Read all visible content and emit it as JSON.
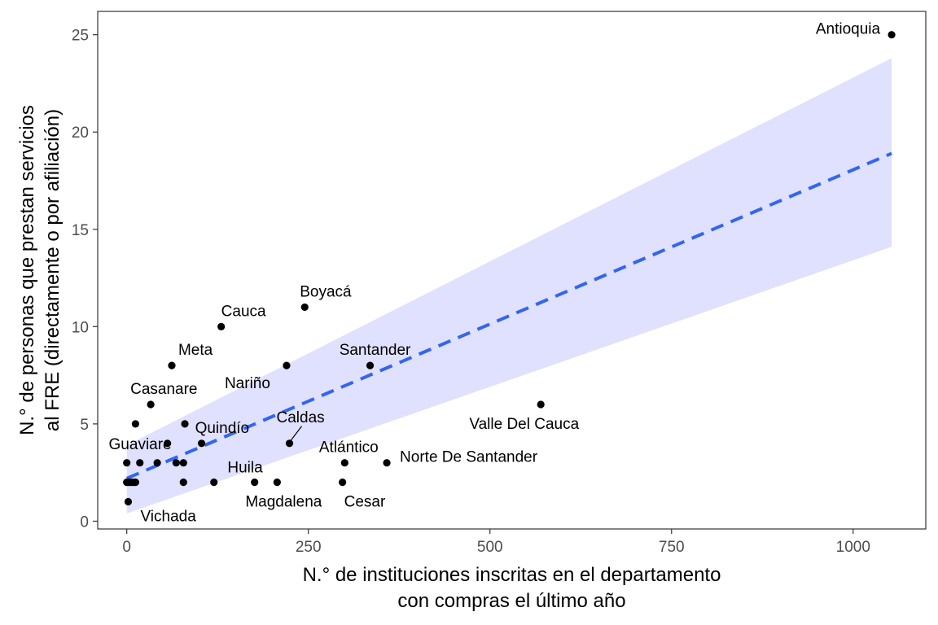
{
  "chart_data": {
    "type": "scatter",
    "xlabel_lines": [
      "N.° de instituciones inscritas en el departamento",
      "con compras el último año"
    ],
    "ylabel_lines": [
      "N.° de personas que prestan servicios",
      "al FRE (directamente o por afiliación)"
    ],
    "xlim": [
      -40,
      1100
    ],
    "ylim": [
      -0.4,
      26.2
    ],
    "x_ticks": [
      0,
      250,
      500,
      750,
      1000
    ],
    "y_ticks": [
      0,
      5,
      10,
      15,
      20,
      25
    ],
    "grid": false,
    "legend": "none",
    "point_color": "#000000",
    "trend_color": "#3366ee",
    "band_color": "#e0e0ff",
    "trend_line": {
      "style": "dashed",
      "x": [
        0,
        1053
      ],
      "y": [
        2.2,
        18.9
      ],
      "band_lower": [
        0.4,
        14.1
      ],
      "band_upper": [
        3.9,
        23.8
      ]
    },
    "labeled_points": [
      {
        "label": "Antioquia",
        "x": 1053,
        "y": 25,
        "anchor": "end",
        "dx": -14,
        "dy": -1
      },
      {
        "label": "Boyacá",
        "x": 245,
        "y": 11,
        "anchor": "start",
        "dx": -6,
        "dy": -13
      },
      {
        "label": "Cauca",
        "x": 130,
        "y": 10,
        "anchor": "start",
        "dx": 0,
        "dy": -13
      },
      {
        "label": "Meta",
        "x": 62,
        "y": 8,
        "anchor": "start",
        "dx": 8,
        "dy": -13
      },
      {
        "label": "Nariño",
        "x": 220,
        "y": 8,
        "anchor": "end",
        "dx": -20,
        "dy": 28
      },
      {
        "label": "Santander",
        "x": 335,
        "y": 8,
        "anchor": "middle",
        "dx": 6,
        "dy": -13
      },
      {
        "label": "Casanare",
        "x": 33,
        "y": 6,
        "anchor": "start",
        "dx": -25,
        "dy": -13
      },
      {
        "label": "Valle Del Cauca",
        "x": 570,
        "y": 6,
        "anchor": "end",
        "dx": 47,
        "dy": 30
      },
      {
        "label": "Quindío",
        "x": 103,
        "y": 4,
        "anchor": "start",
        "dx": -8,
        "dy": -13
      },
      {
        "label": "Caldas",
        "x": 224,
        "y": 4,
        "anchor": "start",
        "dx": -16,
        "dy": -26
      },
      {
        "label": "Guaviare",
        "x": 56,
        "y": 4,
        "anchor": "end",
        "dx": 5,
        "dy": 7
      },
      {
        "label": "Atlántico",
        "x": 300,
        "y": 3,
        "anchor": "middle",
        "dx": 5,
        "dy": -13
      },
      {
        "label": "Norte De Santander",
        "x": 358,
        "y": 3,
        "anchor": "start",
        "dx": 16,
        "dy": -1
      },
      {
        "label": "Huila",
        "x": 176,
        "y": 2,
        "anchor": "end",
        "dx": 10,
        "dy": -12
      },
      {
        "label": "Magdalena",
        "x": 207,
        "y": 2,
        "anchor": "middle",
        "dx": 8,
        "dy": 30
      },
      {
        "label": "Cesar",
        "x": 297,
        "y": 2,
        "anchor": "start",
        "dx": 2,
        "dy": 30
      },
      {
        "label": "Vichada",
        "x": 2,
        "y": 1,
        "anchor": "start",
        "dx": 15,
        "dy": 24
      }
    ],
    "other_points": [
      {
        "x": 0,
        "y": 3
      },
      {
        "x": 12,
        "y": 5
      },
      {
        "x": 18,
        "y": 3
      },
      {
        "x": 42,
        "y": 3
      },
      {
        "x": 68,
        "y": 3
      },
      {
        "x": 78,
        "y": 3
      },
      {
        "x": 80,
        "y": 5
      },
      {
        "x": 78,
        "y": 2
      },
      {
        "x": 120,
        "y": 2
      },
      {
        "x": 0,
        "y": 2
      },
      {
        "x": 3,
        "y": 2
      },
      {
        "x": 6,
        "y": 2
      },
      {
        "x": 9,
        "y": 2
      },
      {
        "x": 12,
        "y": 2
      }
    ]
  }
}
